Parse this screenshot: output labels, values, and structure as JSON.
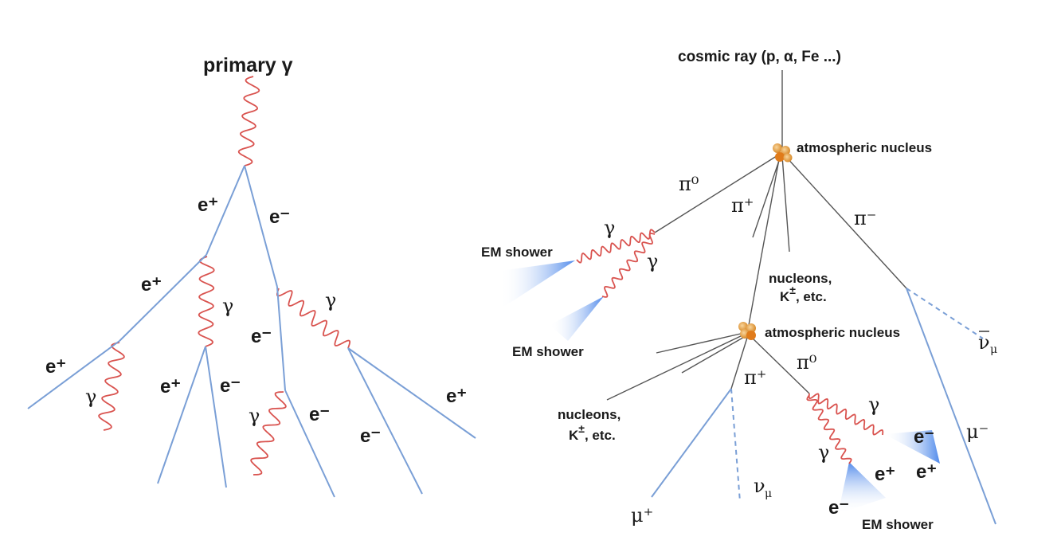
{
  "left_tree": {
    "title": "primary γ",
    "labels": {
      "e_plus_1": "e⁺",
      "e_minus_1": "e⁻",
      "e_plus_2": "e⁺",
      "gamma_1": "γ",
      "gamma_2": "γ",
      "e_minus_2": "e⁻",
      "e_plus_3": "e⁺",
      "gamma_3": "γ",
      "e_plus_4": "e⁺",
      "e_minus_3": "e⁻",
      "gamma_4": "γ",
      "e_minus_4": "e⁻",
      "e_minus_5": "e⁻",
      "e_plus_5": "e⁺"
    }
  },
  "right_tree": {
    "title": "cosmic ray (p, α, Fe ...)",
    "nucleus_1": "atmospheric nucleus",
    "nucleus_2": "atmospheric nucleus",
    "pi0_1": "π⁰",
    "pi_plus_1": "π⁺",
    "pi_minus_1": "π⁻",
    "gamma_a": "γ",
    "gamma_b": "γ",
    "em_shower_1": "EM shower",
    "em_shower_2": "EM shower",
    "em_shower_3": "EM shower",
    "nucleons_1_line1": "nucleons,",
    "nucleons_1_line2_k": "K",
    "nucleons_1_line2_pm": "±",
    "nucleons_1_line2_rest": ",   etc.",
    "nucleons_2_line1": "nucleons,",
    "nucleons_2_line2_k": "K",
    "nucleons_2_line2_pm": "±",
    "nucleons_2_line2_rest": ",   etc.",
    "anti_nu_mu": "ν",
    "anti_nu_mu_sub": "μ",
    "pi_plus_2": "π⁺",
    "pi0_2": "π⁰",
    "gamma_c": "γ",
    "gamma_d": "γ",
    "e_minus_a": "e⁻",
    "e_plus_a": "e⁺",
    "e_plus_b": "e⁺",
    "e_minus_b": "e⁻",
    "mu_minus": "μ⁻",
    "mu_plus": "μ⁺",
    "nu_mu": "ν",
    "nu_mu_sub": "μ"
  }
}
